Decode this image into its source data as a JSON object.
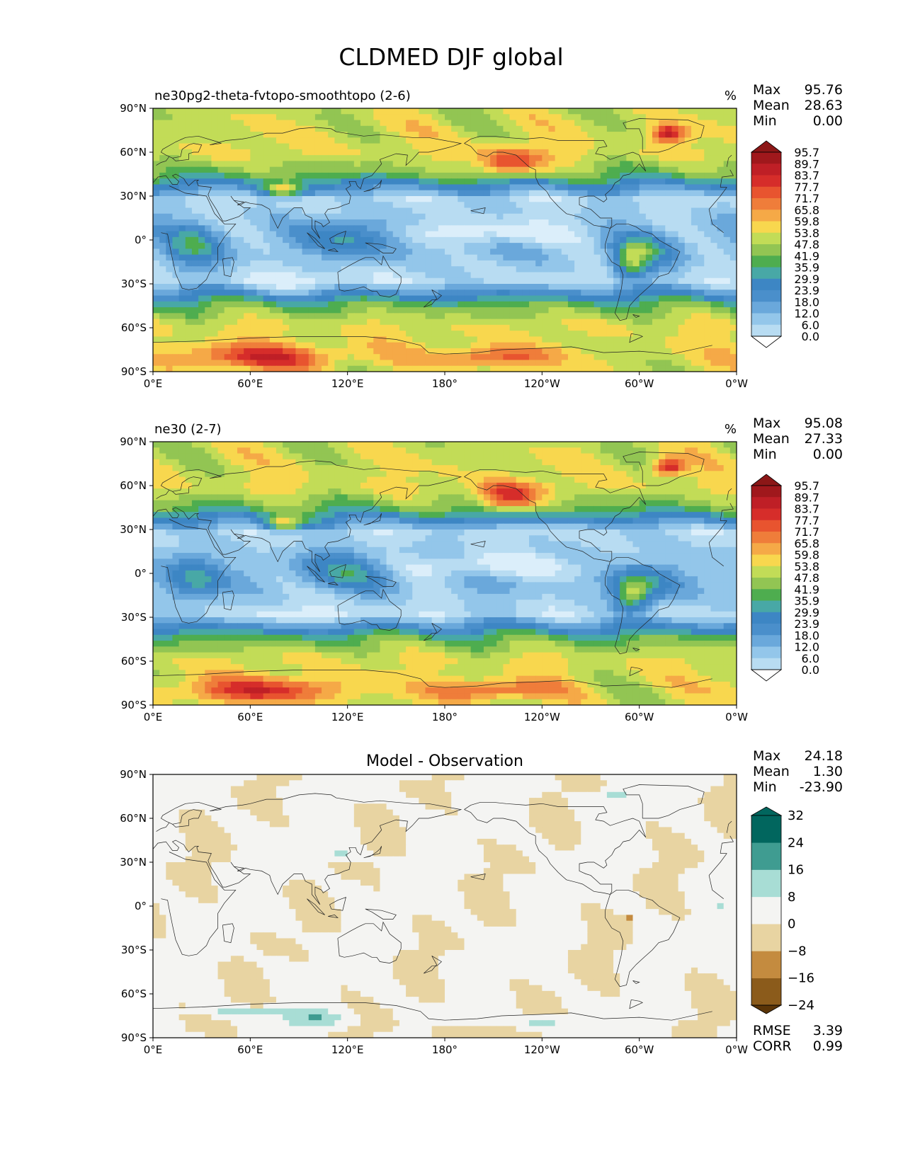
{
  "figure": {
    "title": "CLDMED DJF global"
  },
  "x_ticks": [
    "0°E",
    "60°E",
    "120°E",
    "180°",
    "120°W",
    "60°W",
    "0°W"
  ],
  "y_ticks": [
    "90°N",
    "60°N",
    "30°N",
    "0°",
    "30°S",
    "60°S",
    "90°S"
  ],
  "colors": {
    "field": [
      "#ffffff",
      "#dbeefa",
      "#b8dcf2",
      "#93c6ea",
      "#6aa8db",
      "#4a8fcb",
      "#3d86c4",
      "#48a8a6",
      "#4ead4f",
      "#92c553",
      "#c2dc57",
      "#f8d74e",
      "#f5a947",
      "#ef7d3a",
      "#e8542f",
      "#d62d2a",
      "#bf1f26",
      "#a0181c",
      "#8c1717"
    ],
    "diff": [
      "#5a3407",
      "#8b5b1b",
      "#c48b3f",
      "#e8d4a2",
      "#f4f4f2",
      "#a8ddd5",
      "#3f9c91",
      "#01665e"
    ],
    "coast": "#222222"
  },
  "chart_data": [
    {
      "type": "heatmap",
      "panel": "test",
      "left_title": "ne30pg2-theta-fvtopo-smoothtopo (2-6)",
      "units": "%",
      "stats": {
        "max_label": "Max",
        "max": "95.76",
        "mean_label": "Mean",
        "mean": "28.63",
        "min_label": "Min",
        "min": "0.00"
      },
      "x_range": [
        0,
        360
      ],
      "y_range": [
        -90,
        90
      ],
      "colorbar_levels": [
        "0.0",
        "6.0",
        "12.0",
        "18.0",
        "23.9",
        "29.9",
        "35.9",
        "41.9",
        "47.8",
        "53.8",
        "59.8",
        "65.8",
        "71.7",
        "77.7",
        "83.7",
        "89.7",
        "95.7"
      ]
    },
    {
      "type": "heatmap",
      "panel": "reference",
      "left_title": "ne30 (2-7)",
      "units": "%",
      "stats": {
        "max_label": "Max",
        "max": "95.08",
        "mean_label": "Mean",
        "mean": "27.33",
        "min_label": "Min",
        "min": "0.00"
      },
      "x_range": [
        0,
        360
      ],
      "y_range": [
        -90,
        90
      ],
      "colorbar_levels": [
        "0.0",
        "6.0",
        "12.0",
        "18.0",
        "23.9",
        "29.9",
        "35.9",
        "41.9",
        "47.8",
        "53.8",
        "59.8",
        "65.8",
        "71.7",
        "77.7",
        "83.7",
        "89.7",
        "95.7"
      ]
    },
    {
      "type": "heatmap",
      "panel": "difference",
      "center_title": "Model - Observation",
      "stats": {
        "max_label": "Max",
        "max": "24.18",
        "mean_label": "Mean",
        "mean": "1.30",
        "min_label": "Min",
        "min": "-23.90"
      },
      "x_range": [
        0,
        360
      ],
      "y_range": [
        -90,
        90
      ],
      "colorbar_levels": [
        "−24",
        "−16",
        "−8",
        "0",
        "8",
        "16",
        "24",
        "32"
      ],
      "metrics": {
        "rmse_label": "RMSE",
        "rmse": "3.39",
        "corr_label": "CORR",
        "corr": "0.99"
      }
    }
  ]
}
